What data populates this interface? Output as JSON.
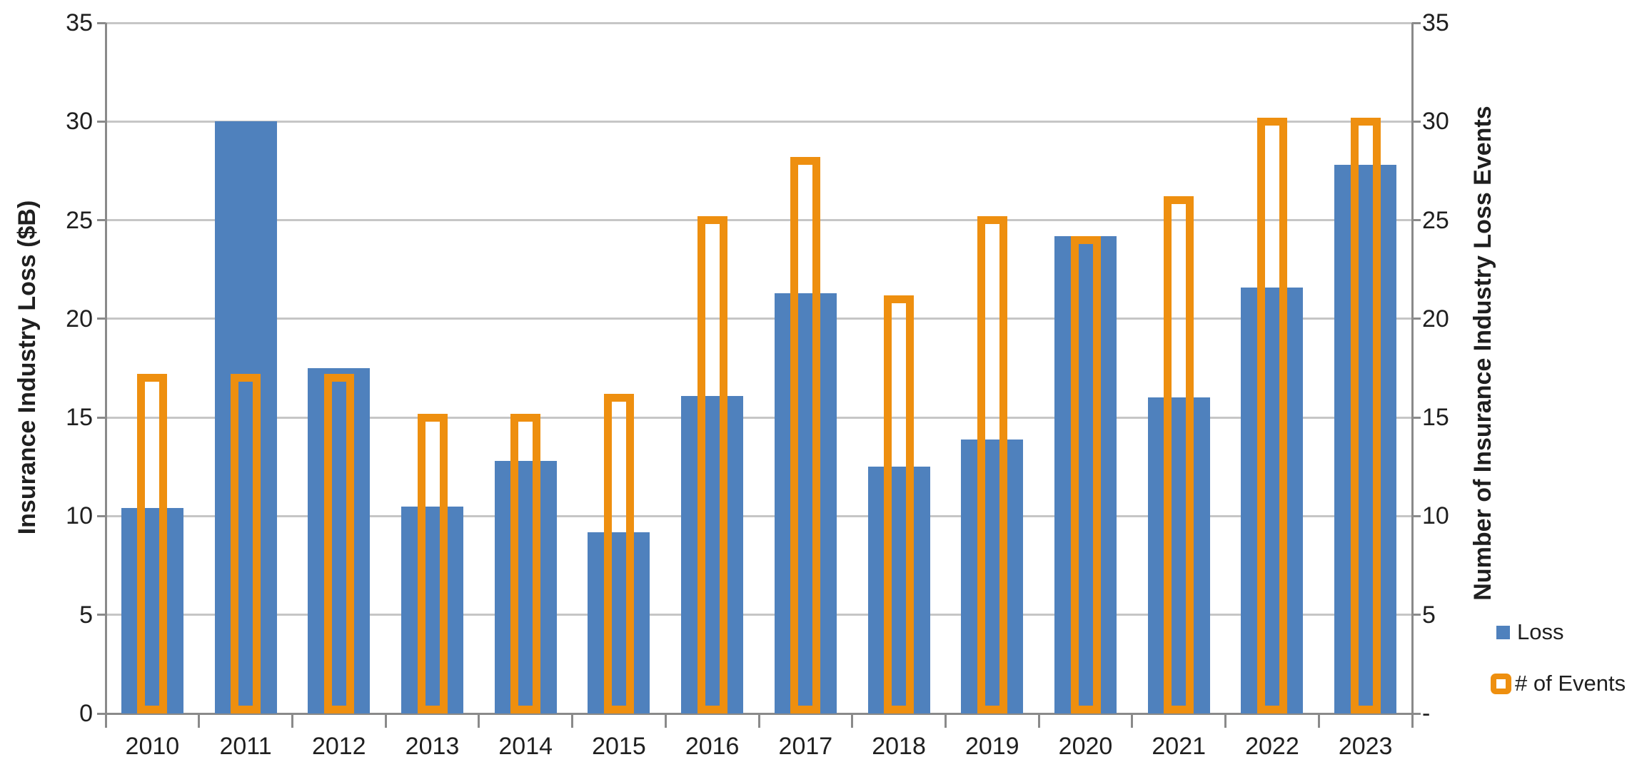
{
  "chart_data": {
    "type": "bar",
    "title": "",
    "categories": [
      "2010",
      "2011",
      "2012",
      "2013",
      "2014",
      "2015",
      "2016",
      "2017",
      "2018",
      "2019",
      "2020",
      "2021",
      "2022",
      "2023"
    ],
    "series": [
      {
        "name": "Loss",
        "style": "filled-bar",
        "color": "#4F81BD",
        "axis": "left",
        "values": [
          10.4,
          30.0,
          17.5,
          10.5,
          12.8,
          9.2,
          16.1,
          21.3,
          12.5,
          13.9,
          24.2,
          16.0,
          21.6,
          27.8
        ]
      },
      {
        "name": "# of Events",
        "style": "outlined-bar",
        "color": "#EE8F0F",
        "axis": "right",
        "values": [
          17,
          17,
          17,
          15,
          15,
          16,
          25,
          28,
          21,
          25,
          24,
          26,
          30,
          30
        ]
      }
    ],
    "left_axis": {
      "title": "Insurance Industry Loss ($B)",
      "min": 0,
      "max": 35,
      "step": 5,
      "tick_labels": [
        "0",
        "5",
        "10",
        "15",
        "20",
        "25",
        "30",
        "35"
      ]
    },
    "right_axis": {
      "title": "Number of Insurance Industry Loss Events",
      "min": 0,
      "max": 35,
      "step": 5,
      "tick_labels": [
        "-",
        "5",
        "10",
        "15",
        "20",
        "25",
        "30",
        "35"
      ]
    },
    "grid": true,
    "legend_position": "right"
  },
  "legend": {
    "loss_label": "Loss",
    "events_label": "# of Events"
  },
  "colors": {
    "loss_fill": "#4F81BD",
    "events_stroke": "#EE8F0F",
    "gridline": "#C6C6C6",
    "axis_line": "#8A8A8A",
    "text": "#1F1F1F",
    "background": "#FFFFFF"
  }
}
